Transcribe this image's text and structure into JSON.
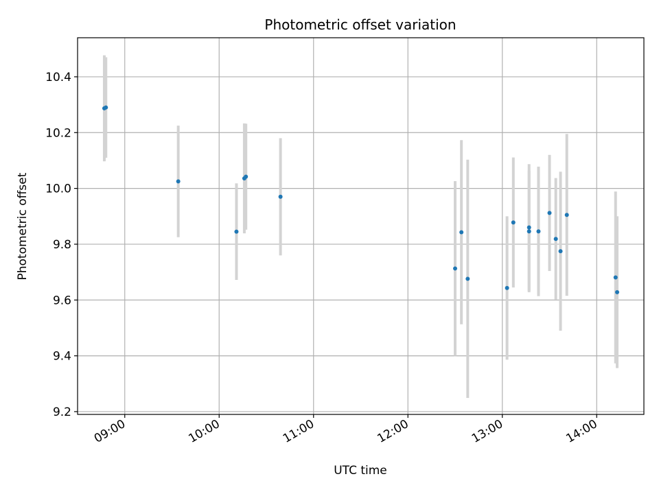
{
  "chart_data": {
    "type": "scatter",
    "title": "Photometric offset variation",
    "xlabel": "UTC time",
    "ylabel": "Photometric offset",
    "grid": true,
    "xlim": [
      "08:30",
      "14:30"
    ],
    "ylim": [
      9.19,
      10.54
    ],
    "x_ticks": [
      "09:00",
      "10:00",
      "11:00",
      "12:00",
      "13:00",
      "14:00"
    ],
    "y_ticks": [
      9.2,
      9.4,
      9.6,
      9.8,
      10.0,
      10.2,
      10.4
    ],
    "y_tick_labels": [
      "9.2",
      "9.4",
      "9.6",
      "9.8",
      "10.0",
      "10.2",
      "10.4"
    ],
    "colors": {
      "points": "#1f77b4",
      "errorbars": "#d3d3d3",
      "grid": "#b0b0b0"
    },
    "points": [
      {
        "x": "08:47",
        "y": 10.287,
        "err": 0.19
      },
      {
        "x": "08:48",
        "y": 10.29,
        "err": 0.18
      },
      {
        "x": "09:34",
        "y": 10.025,
        "err": 0.2
      },
      {
        "x": "10:11",
        "y": 9.845,
        "err": 0.173
      },
      {
        "x": "10:16",
        "y": 10.036,
        "err": 0.197
      },
      {
        "x": "10:17",
        "y": 10.042,
        "err": 0.19
      },
      {
        "x": "10:39",
        "y": 9.97,
        "err": 0.21
      },
      {
        "x": "12:30",
        "y": 9.713,
        "err": 0.313
      },
      {
        "x": "12:34",
        "y": 9.843,
        "err": 0.33
      },
      {
        "x": "12:38",
        "y": 9.676,
        "err": 0.427
      },
      {
        "x": "13:03",
        "y": 9.643,
        "err": 0.257
      },
      {
        "x": "13:07",
        "y": 9.878,
        "err": 0.233
      },
      {
        "x": "13:17",
        "y": 9.86,
        "err": 0.227
      },
      {
        "x": "13:17",
        "y": 9.846,
        "err": 0.218
      },
      {
        "x": "13:23",
        "y": 9.846,
        "err": 0.232
      },
      {
        "x": "13:30",
        "y": 9.912,
        "err": 0.208
      },
      {
        "x": "13:34",
        "y": 9.819,
        "err": 0.218
      },
      {
        "x": "13:37",
        "y": 9.775,
        "err": 0.285
      },
      {
        "x": "13:41",
        "y": 9.905,
        "err": 0.29
      },
      {
        "x": "14:12",
        "y": 9.681,
        "err": 0.308
      },
      {
        "x": "14:13",
        "y": 9.628,
        "err": 0.272
      }
    ]
  }
}
